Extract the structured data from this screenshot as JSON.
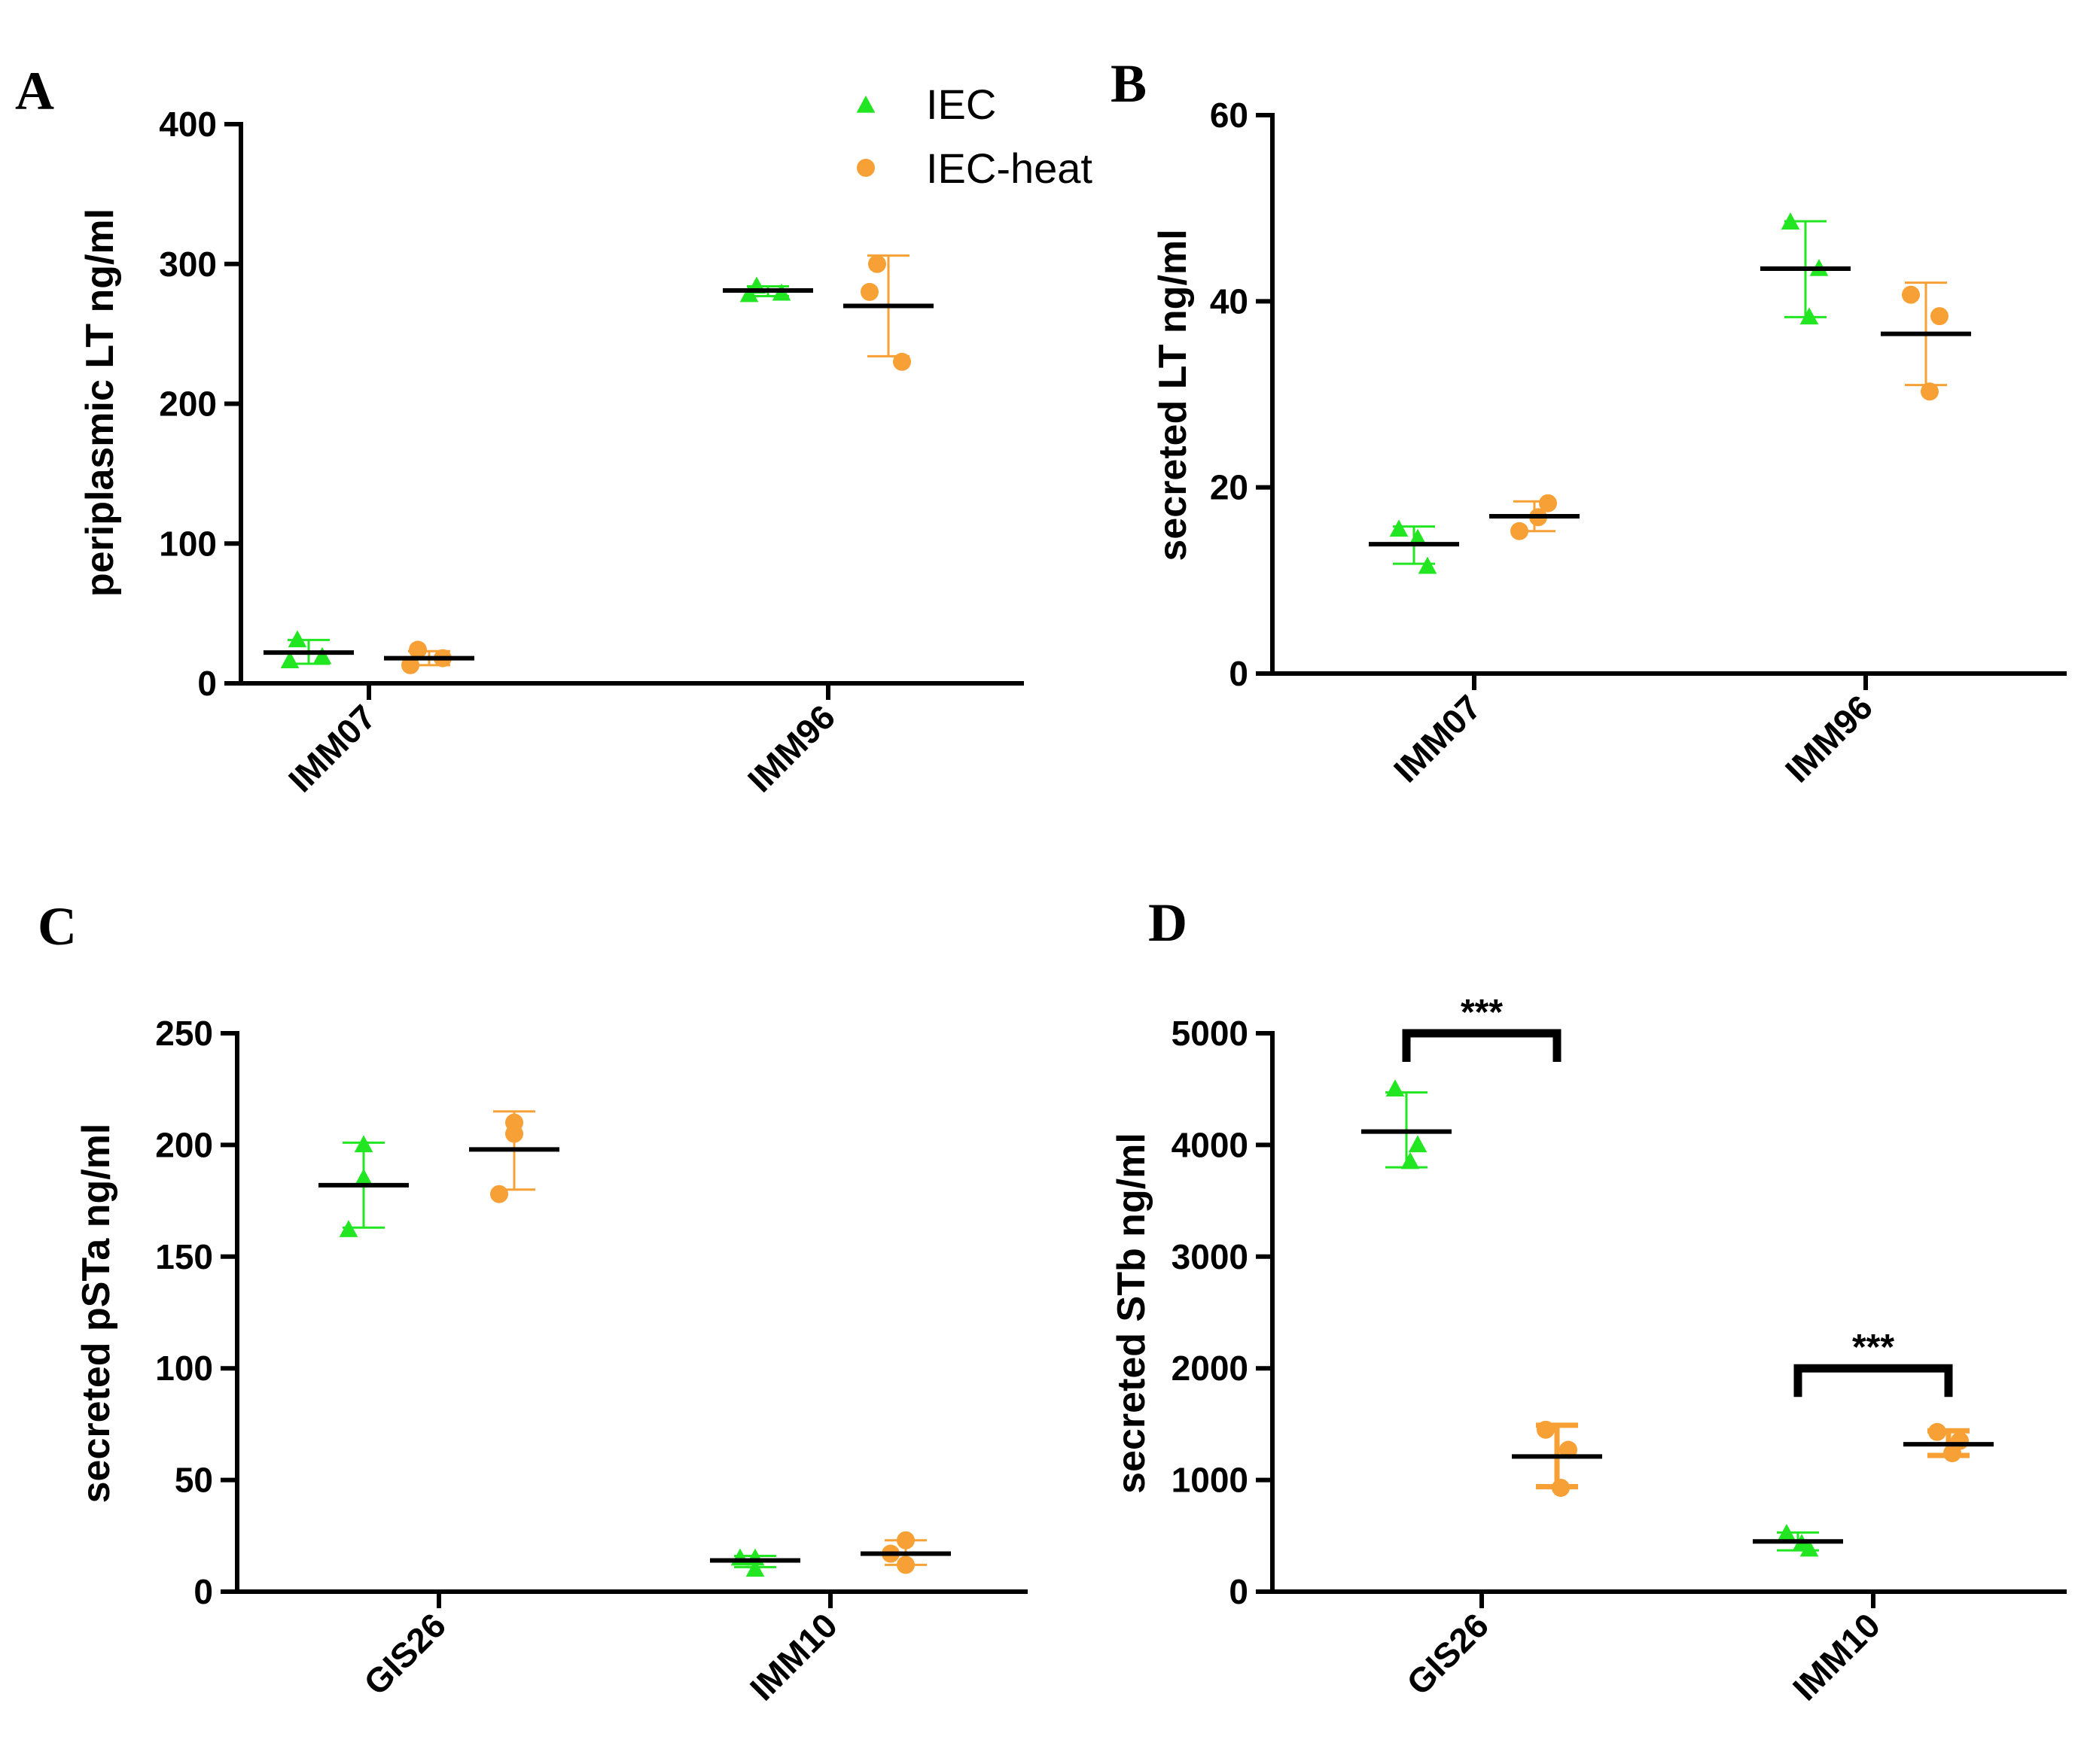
{
  "colors": {
    "IEC": "#22e622",
    "IEC-heat": "#f7a035",
    "axis": "#000000",
    "mean": "#000000"
  },
  "legend": [
    {
      "name": "IEC",
      "marker": "triangle"
    },
    {
      "name": "IEC-heat",
      "marker": "circle"
    }
  ],
  "chart_data": [
    {
      "type": "scatter",
      "panel": "A",
      "ylabel": "periplasmic LT ng/ml",
      "ylim": [
        0,
        400
      ],
      "yticks": [
        0,
        100,
        200,
        300,
        400
      ],
      "categories": [
        "IMM07",
        "IMM96"
      ],
      "series": [
        {
          "name": "IEC",
          "groups": [
            {
              "category": "IMM07",
              "points": [
                31,
                16,
                19
              ],
              "mean": 22,
              "sd_low": 14,
              "sd_high": 31
            },
            {
              "category": "IMM96",
              "points": [
                284,
                278,
                279
              ],
              "mean": 281,
              "sd_low": 277,
              "sd_high": 284
            }
          ]
        },
        {
          "name": "IEC-heat",
          "groups": [
            {
              "category": "IMM07",
              "points": [
                24,
                13,
                18
              ],
              "mean": 18,
              "sd_low": 13,
              "sd_high": 23
            },
            {
              "category": "IMM96",
              "points": [
                300,
                280,
                230
              ],
              "mean": 270,
              "sd_low": 234,
              "sd_high": 306
            }
          ]
        }
      ],
      "significance": []
    },
    {
      "type": "scatter",
      "panel": "B",
      "ylabel": "secreted LT ng/ml",
      "ylim": [
        0,
        60
      ],
      "yticks": [
        0,
        20,
        40,
        60
      ],
      "categories": [
        "IMM07",
        "IMM96"
      ],
      "series": [
        {
          "name": "IEC",
          "groups": [
            {
              "category": "IMM07",
              "points": [
                15.5,
                11.5,
                14.5
              ],
              "mean": 13.9,
              "sd_low": 11.8,
              "sd_high": 15.8
            },
            {
              "category": "IMM96",
              "points": [
                48.5,
                43.5,
                38.3
              ],
              "mean": 43.5,
              "sd_low": 38.3,
              "sd_high": 48.6
            }
          ]
        },
        {
          "name": "IEC-heat",
          "groups": [
            {
              "category": "IMM07",
              "points": [
                15.3,
                18.3,
                16.8
              ],
              "mean": 16.9,
              "sd_low": 15.3,
              "sd_high": 18.5
            },
            {
              "category": "IMM96",
              "points": [
                40.7,
                38.4,
                30.3
              ],
              "mean": 36.5,
              "sd_low": 31.0,
              "sd_high": 42.0
            }
          ]
        }
      ],
      "significance": []
    },
    {
      "type": "scatter",
      "panel": "C",
      "ylabel": "secreted pSTa ng/ml",
      "ylim": [
        0,
        250
      ],
      "yticks": [
        0,
        50,
        100,
        150,
        200,
        250
      ],
      "categories": [
        "GIS26",
        "IMM10"
      ],
      "series": [
        {
          "name": "IEC",
          "groups": [
            {
              "category": "GIS26",
              "points": [
                200,
                185,
                162
              ],
              "mean": 182,
              "sd_low": 163,
              "sd_high": 201
            },
            {
              "category": "IMM10",
              "points": [
                15,
                10,
                15
              ],
              "mean": 14,
              "sd_low": 11,
              "sd_high": 16
            }
          ]
        },
        {
          "name": "IEC-heat",
          "groups": [
            {
              "category": "GIS26",
              "points": [
                210,
                205,
                178
              ],
              "mean": 198,
              "sd_low": 180,
              "sd_high": 215
            },
            {
              "category": "IMM10",
              "points": [
                23,
                12,
                17
              ],
              "mean": 17,
              "sd_low": 12,
              "sd_high": 23
            }
          ]
        }
      ],
      "significance": []
    },
    {
      "type": "scatter",
      "panel": "D",
      "ylabel": "secreted STb ng/ml",
      "ylim": [
        0,
        5000
      ],
      "yticks": [
        0,
        1000,
        2000,
        3000,
        4000,
        5000
      ],
      "categories": [
        "GIS26",
        "IMM10"
      ],
      "series": [
        {
          "name": "IEC",
          "groups": [
            {
              "category": "GIS26",
              "points": [
                4500,
                4000,
                3850
              ],
              "mean": 4120,
              "sd_low": 3800,
              "sd_high": 4470
            },
            {
              "category": "IMM10",
              "points": [
                520,
                380,
                430
              ],
              "mean": 450,
              "sd_low": 370,
              "sd_high": 530
            }
          ]
        },
        {
          "name": "IEC-heat",
          "groups": [
            {
              "category": "GIS26",
              "points": [
                1450,
                1270,
                930
              ],
              "mean": 1210,
              "sd_low": 940,
              "sd_high": 1490
            },
            {
              "category": "IMM10",
              "points": [
                1430,
                1350,
                1240
              ],
              "mean": 1320,
              "sd_low": 1220,
              "sd_high": 1440
            }
          ]
        }
      ],
      "significance": [
        {
          "category": "GIS26",
          "label": "***",
          "y": 5000
        },
        {
          "category": "IMM10",
          "label": "***",
          "y": 2000
        }
      ]
    }
  ]
}
